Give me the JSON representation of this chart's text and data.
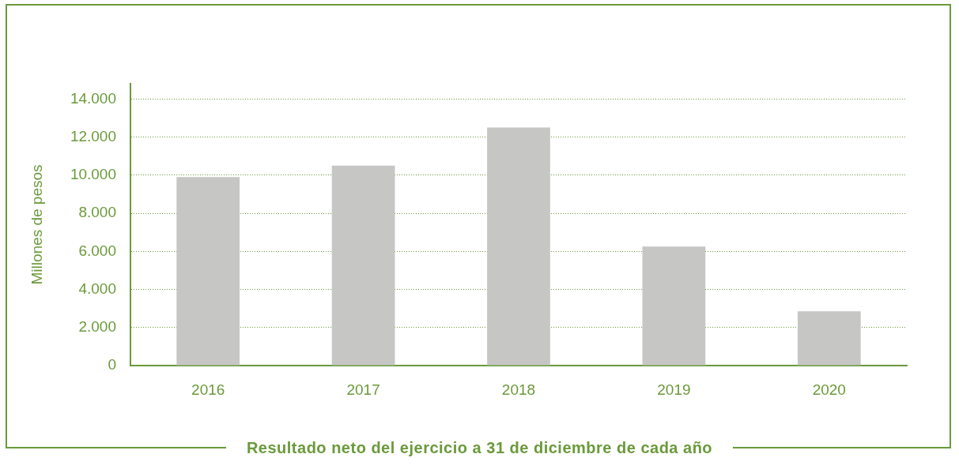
{
  "chart_data": {
    "type": "bar",
    "title": "Resultado neto del ejercicio a 31 de diciembre de cada año",
    "ylabel": "Millones de pesos",
    "categories": [
      "2016",
      "2017",
      "2018",
      "2019",
      "2020"
    ],
    "values": [
      9900,
      10500,
      12500,
      6250,
      2850
    ],
    "color": "#c6c6c5",
    "ylim": [
      0,
      14800
    ],
    "yticks": [
      {
        "value": 0,
        "label": "0"
      },
      {
        "value": 2000,
        "label": "2.000"
      },
      {
        "value": 4000,
        "label": "4.000"
      },
      {
        "value": 6000,
        "label": "6.000"
      },
      {
        "value": 8000,
        "label": "8.000"
      },
      {
        "value": 10000,
        "label": "10.000"
      },
      {
        "value": 12000,
        "label": "12.000"
      },
      {
        "value": 14000,
        "label": "14.000"
      }
    ],
    "grid": "y",
    "legend": false
  }
}
